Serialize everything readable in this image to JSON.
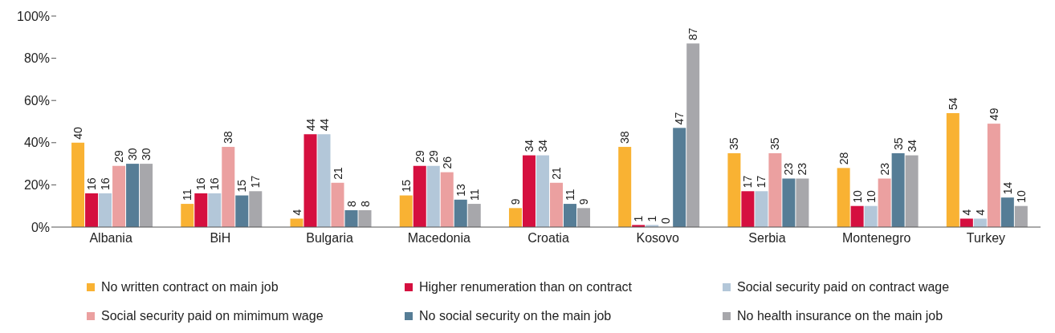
{
  "chart_data": {
    "type": "bar",
    "categories": [
      "Albania",
      "BiH",
      "Bulgaria",
      "Macedonia",
      "Croatia",
      "Kosovo",
      "Serbia",
      "Montenegro",
      "Turkey"
    ],
    "series": [
      {
        "name": "No written contract on main job",
        "color": "#f9b233",
        "values": [
          40,
          11,
          4,
          15,
          9,
          38,
          35,
          28,
          54
        ]
      },
      {
        "name": "Higher renumeration than on contract",
        "color": "#d50f3f",
        "values": [
          16,
          16,
          44,
          29,
          34,
          1,
          17,
          10,
          4
        ]
      },
      {
        "name": "Social security paid on contract wage",
        "color": "#b3c7d9",
        "values": [
          16,
          16,
          44,
          29,
          34,
          1,
          17,
          10,
          4
        ]
      },
      {
        "name": "Social security paid on mimimum wage",
        "color": "#eba0a0",
        "values": [
          29,
          38,
          21,
          26,
          21,
          0,
          35,
          23,
          49
        ]
      },
      {
        "name": "No social security on the main job",
        "color": "#567d96",
        "values": [
          30,
          15,
          8,
          13,
          11,
          47,
          23,
          35,
          14
        ]
      },
      {
        "name": "No health insurance on the main job",
        "color": "#a7a7ab",
        "values": [
          30,
          17,
          8,
          11,
          9,
          87,
          23,
          34,
          10
        ]
      }
    ],
    "ylim": [
      0,
      100
    ],
    "yticks": [
      {
        "value": 0,
        "label": "0%"
      },
      {
        "value": 20,
        "label": "20%"
      },
      {
        "value": 40,
        "label": "40%"
      },
      {
        "value": 60,
        "label": "60%"
      },
      {
        "value": 80,
        "label": "80%"
      },
      {
        "value": 100,
        "label": "100%"
      }
    ],
    "grid": false,
    "legend": "bottom",
    "data_labels": true
  }
}
